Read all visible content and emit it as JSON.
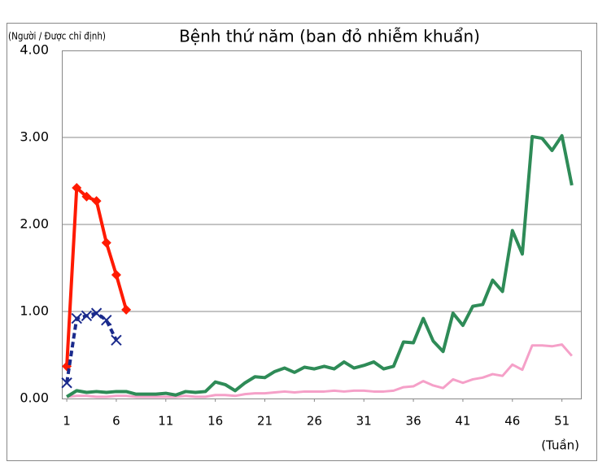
{
  "chart_data": {
    "type": "line",
    "title": "Bệnh thứ năm (ban đỏ nhiễm khuẩn)",
    "y_label": "(Người / Được chỉ định)",
    "x_label": "(Tuần)",
    "x": [
      1,
      2,
      3,
      4,
      5,
      6,
      7,
      8,
      9,
      10,
      11,
      12,
      13,
      14,
      15,
      16,
      17,
      18,
      19,
      20,
      21,
      22,
      23,
      24,
      25,
      26,
      27,
      28,
      29,
      30,
      31,
      32,
      33,
      34,
      35,
      36,
      37,
      38,
      39,
      40,
      41,
      42,
      43,
      44,
      45,
      46,
      47,
      48,
      49,
      50,
      51,
      52
    ],
    "xlim": [
      0.5,
      53
    ],
    "xticks": [
      1,
      6,
      11,
      16,
      21,
      26,
      31,
      36,
      41,
      46,
      51
    ],
    "ylim": [
      0,
      4
    ],
    "yticks": [
      {
        "value": 0,
        "label": "0.00"
      },
      {
        "value": 1,
        "label": "1.00"
      },
      {
        "value": 2,
        "label": "2.00"
      },
      {
        "value": 3,
        "label": "3.00"
      },
      {
        "value": 4,
        "label": "4.00"
      }
    ],
    "grid": true,
    "series": [
      {
        "color": "#f5a0c8",
        "width": 3,
        "values": [
          0.02,
          0.03,
          0.03,
          0.02,
          0.02,
          0.03,
          0.03,
          0.02,
          0.02,
          0.02,
          0.02,
          0.02,
          0.03,
          0.02,
          0.02,
          0.04,
          0.04,
          0.03,
          0.05,
          0.06,
          0.06,
          0.07,
          0.08,
          0.07,
          0.08,
          0.08,
          0.08,
          0.09,
          0.08,
          0.09,
          0.09,
          0.08,
          0.08,
          0.09,
          0.13,
          0.14,
          0.2,
          0.15,
          0.12,
          0.22,
          0.18,
          0.22,
          0.24,
          0.28,
          0.26,
          0.39,
          0.33,
          0.61,
          0.61,
          0.6,
          0.62,
          0.49
        ]
      },
      {
        "color": "#2e8b57",
        "width": 4,
        "values": [
          0.02,
          0.09,
          0.07,
          0.08,
          0.07,
          0.08,
          0.08,
          0.05,
          0.05,
          0.05,
          0.06,
          0.04,
          0.08,
          0.07,
          0.08,
          0.19,
          0.16,
          0.09,
          0.18,
          0.25,
          0.24,
          0.31,
          0.35,
          0.3,
          0.36,
          0.34,
          0.37,
          0.34,
          0.42,
          0.35,
          0.38,
          0.42,
          0.34,
          0.37,
          0.65,
          0.64,
          0.92,
          0.66,
          0.54,
          0.98,
          0.84,
          1.06,
          1.08,
          1.36,
          1.23,
          1.93,
          1.66,
          3.01,
          2.99,
          2.85,
          3.02,
          2.45
        ]
      },
      {
        "color": "#ff1a00",
        "width": 4,
        "marker": "diamond",
        "values": [
          0.37,
          2.42,
          2.32,
          2.27,
          1.79,
          1.42,
          1.02,
          null,
          null,
          null,
          null,
          null,
          null,
          null,
          null,
          null,
          null,
          null,
          null,
          null,
          null,
          null,
          null,
          null,
          null,
          null,
          null,
          null,
          null,
          null,
          null,
          null,
          null,
          null,
          null,
          null,
          null,
          null,
          null,
          null,
          null,
          null,
          null,
          null,
          null,
          null,
          null,
          null,
          null,
          null,
          null,
          null
        ]
      },
      {
        "color": "#1a2a8c",
        "width": 4,
        "marker": "x",
        "dashed": true,
        "values": [
          0.18,
          0.92,
          0.95,
          0.98,
          0.9,
          0.67,
          null,
          null,
          null,
          null,
          null,
          null,
          null,
          null,
          null,
          null,
          null,
          null,
          null,
          null,
          null,
          null,
          null,
          null,
          null,
          null,
          null,
          null,
          null,
          null,
          null,
          null,
          null,
          null,
          null,
          null,
          null,
          null,
          null,
          null,
          null,
          null,
          null,
          null,
          null,
          null,
          null,
          null,
          null,
          null,
          null,
          null
        ]
      }
    ]
  }
}
